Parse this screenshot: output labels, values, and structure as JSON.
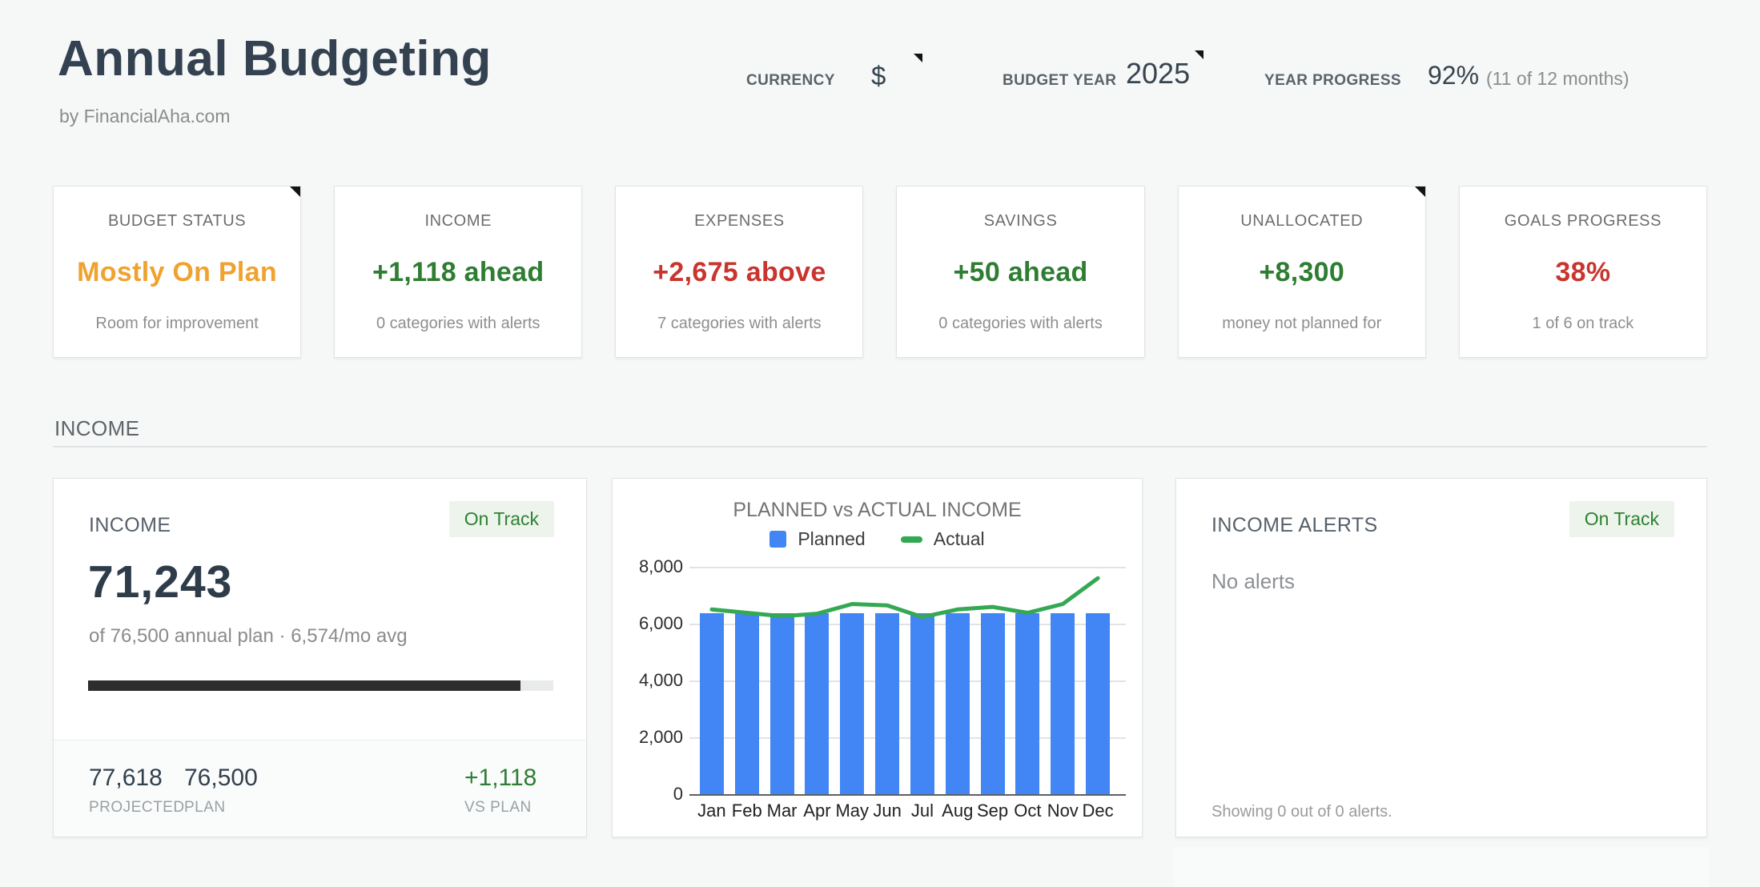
{
  "header": {
    "title": "Annual Budgeting",
    "subtitle": "by FinancialAha.com",
    "controls": [
      {
        "label": "CURRENCY",
        "value": "$",
        "has_note": true
      },
      {
        "label": "BUDGET YEAR",
        "value": "2025",
        "has_note": true
      },
      {
        "label": "YEAR PROGRESS",
        "value": "92%",
        "suffix": "(11 of 12 months)"
      }
    ]
  },
  "summary_cards": [
    {
      "label": "BUDGET STATUS",
      "value": "Mostly On Plan",
      "caption": "Room for improvement",
      "value_color": "#f0a230",
      "has_note": true
    },
    {
      "label": "INCOME",
      "value": "+1,118 ahead",
      "caption": "0 categories with alerts",
      "value_color": "#2e7d32",
      "has_note": false
    },
    {
      "label": "EXPENSES",
      "value": "+2,675 above",
      "caption": "7 categories with alerts",
      "value_color": "#c9352e",
      "has_note": false
    },
    {
      "label": "SAVINGS",
      "value": "+50 ahead",
      "caption": "0 categories with alerts",
      "value_color": "#2e7d32",
      "has_note": false
    },
    {
      "label": "UNALLOCATED",
      "value": "+8,300",
      "caption": "money not planned for",
      "value_color": "#2e7d32",
      "has_note": true
    },
    {
      "label": "GOALS PROGRESS",
      "value": "38%",
      "caption": "1 of 6 on track",
      "value_color": "#c9352e",
      "has_note": false
    }
  ],
  "income_section": {
    "title": "INCOME"
  },
  "income_card": {
    "title": "INCOME",
    "badge": "On Track",
    "total": "71,243",
    "subtext": "of 76,500 annual plan · 6,574/mo avg",
    "progress_pct": 93,
    "stats": {
      "projected": {
        "value": "77,618",
        "label": "PROJECTED"
      },
      "plan": {
        "value": "76,500",
        "label": "PLAN"
      },
      "vs_plan": {
        "value": "+1,118",
        "label": "VS PLAN",
        "color": "#2e7d32"
      }
    }
  },
  "chart_data": {
    "type": "bar",
    "title": "PLANNED vs ACTUAL INCOME",
    "categories": [
      "Jan",
      "Feb",
      "Mar",
      "Apr",
      "May",
      "Jun",
      "Jul",
      "Aug",
      "Sep",
      "Oct",
      "Nov",
      "Dec"
    ],
    "series": [
      {
        "name": "Planned",
        "type": "bar",
        "color": "#4285f4",
        "values": [
          6375,
          6375,
          6375,
          6375,
          6375,
          6375,
          6375,
          6375,
          6375,
          6375,
          6375,
          6375
        ]
      },
      {
        "name": "Actual",
        "type": "line",
        "color": "#34a853",
        "values": [
          6500,
          6380,
          6260,
          6350,
          6690,
          6640,
          6230,
          6500,
          6590,
          6380,
          6690,
          7600
        ]
      }
    ],
    "xlabel": "",
    "ylabel": "",
    "ylim": [
      0,
      8000
    ],
    "yticks": [
      0,
      2000,
      4000,
      6000,
      8000
    ],
    "grid": true,
    "legend_position": "top"
  },
  "alerts_card": {
    "title": "INCOME ALERTS",
    "badge": "On Track",
    "empty_text": "No alerts",
    "footer_text": "Showing 0 out of 0 alerts."
  },
  "colors": {
    "positive": "#2e7d32",
    "negative": "#c9352e",
    "warning": "#f0a230",
    "planned_bar": "#4285f4",
    "actual_line": "#34a853",
    "badge_bg": "#ecf4ec",
    "badge_text": "#2f8132"
  }
}
